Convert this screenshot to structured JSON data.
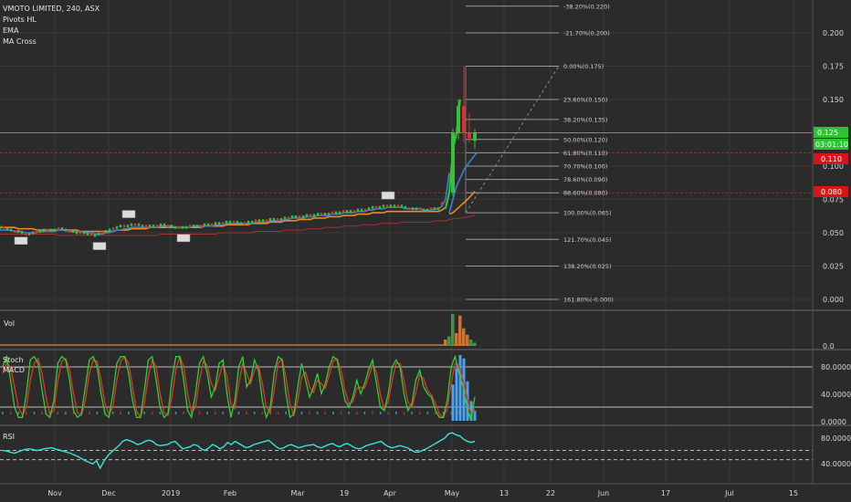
{
  "header": {
    "symbol_line": "VMOTO LIMITED, 240, ASX",
    "indicators": [
      "Pivots HL",
      "EMA",
      "MA Cross"
    ]
  },
  "colors": {
    "bg": "#2b2b2b",
    "grid": "#3a3a3a",
    "green": "#36c236",
    "red": "#e03030",
    "ema_blue": "#3d7fd6",
    "ma_orange": "#f08a24",
    "ma_darkred": "#a83232",
    "stoch_green": "#2fd12f",
    "stoch_red": "#e8332e",
    "macd_blue": "#4aa3f0",
    "rsi": "#33e6d8",
    "vol_orange": "#c8743a",
    "vol_green": "#4c8c4c",
    "fib_line": "#9a9a9a",
    "price_label_bg": "#31c231",
    "line_label_bg": "#d8161a"
  },
  "chart_data": [
    {
      "type": "line",
      "panel": "price",
      "x_ticks": [
        "Nov",
        "Dec",
        "2019",
        "Feb",
        "Mar",
        "19",
        "Apr",
        "May",
        "13",
        "22",
        "Jun",
        "17",
        "Jul",
        "15"
      ],
      "y_ticks": [
        "0.200",
        "0.175",
        "0.150",
        "0.125",
        "0.100",
        "0.075",
        "0.050",
        "0.025",
        "0.000"
      ],
      "ylim": [
        -0.005,
        0.215
      ],
      "price_path_x": [
        0,
        4,
        8,
        12,
        16,
        20,
        24,
        28,
        32,
        36,
        40,
        44,
        48,
        52,
        56,
        60,
        64,
        68,
        72,
        76,
        80,
        84,
        88,
        92,
        96,
        100,
        104,
        108,
        112,
        116,
        120,
        124,
        128,
        132,
        136,
        140,
        144,
        148,
        152,
        156,
        160,
        164,
        168,
        172,
        176,
        180,
        184,
        188,
        192,
        196,
        200,
        204,
        208,
        212,
        216,
        220,
        224,
        228,
        232,
        236,
        240,
        244,
        248,
        252,
        256,
        260,
        264,
        268,
        272,
        276,
        280,
        284,
        288,
        292,
        296,
        300,
        304,
        308,
        312,
        316,
        320,
        324,
        328,
        332,
        336,
        340,
        344,
        348,
        352,
        356,
        360,
        364,
        368,
        372,
        376,
        380,
        384,
        388,
        392,
        396,
        400,
        404,
        408,
        412,
        416,
        420,
        424,
        428,
        432,
        436,
        440,
        444,
        448,
        452,
        456,
        460,
        464,
        468,
        472,
        476,
        480,
        484,
        488,
        492
      ],
      "price_path_y": [
        0.054,
        0.054,
        0.053,
        0.052,
        0.051,
        0.051,
        0.05,
        0.049,
        0.049,
        0.05,
        0.051,
        0.051,
        0.052,
        0.052,
        0.052,
        0.052,
        0.053,
        0.053,
        0.052,
        0.051,
        0.051,
        0.05,
        0.05,
        0.05,
        0.049,
        0.049,
        0.048,
        0.049,
        0.05,
        0.051,
        0.052,
        0.053,
        0.054,
        0.055,
        0.055,
        0.055,
        0.056,
        0.056,
        0.056,
        0.055,
        0.055,
        0.055,
        0.055,
        0.055,
        0.056,
        0.056,
        0.055,
        0.055,
        0.054,
        0.054,
        0.054,
        0.054,
        0.055,
        0.055,
        0.055,
        0.055,
        0.056,
        0.056,
        0.056,
        0.057,
        0.057,
        0.057,
        0.058,
        0.058,
        0.058,
        0.058,
        0.057,
        0.057,
        0.058,
        0.058,
        0.059,
        0.059,
        0.059,
        0.059,
        0.06,
        0.06,
        0.06,
        0.06,
        0.061,
        0.061,
        0.062,
        0.062,
        0.062,
        0.062,
        0.063,
        0.063,
        0.063,
        0.064,
        0.064,
        0.064,
        0.064,
        0.065,
        0.065,
        0.065,
        0.066,
        0.066,
        0.066,
        0.066,
        0.067,
        0.067,
        0.067,
        0.068,
        0.069,
        0.069,
        0.069,
        0.07,
        0.07,
        0.07,
        0.07,
        0.07,
        0.07,
        0.069,
        0.068,
        0.068,
        0.068,
        0.068,
        0.067,
        0.067,
        0.068,
        0.068,
        0.068,
        0.072,
        0.08,
        0.11
      ],
      "ema_path_y": [
        0.052,
        0.052,
        0.052,
        0.052,
        0.051,
        0.051,
        0.051,
        0.05,
        0.05,
        0.05,
        0.05,
        0.051,
        0.051,
        0.051,
        0.051,
        0.051,
        0.052,
        0.052,
        0.052,
        0.051,
        0.051,
        0.051,
        0.051,
        0.05,
        0.05,
        0.05,
        0.049,
        0.049,
        0.049,
        0.05,
        0.05,
        0.051,
        0.052,
        0.052,
        0.053,
        0.053,
        0.054,
        0.054,
        0.054,
        0.054,
        0.054,
        0.054,
        0.054,
        0.054,
        0.055,
        0.055,
        0.055,
        0.055,
        0.054,
        0.054,
        0.054,
        0.054,
        0.054,
        0.055,
        0.055,
        0.055,
        0.055,
        0.055,
        0.055,
        0.056,
        0.056,
        0.056,
        0.057,
        0.057,
        0.057,
        0.057,
        0.057,
        0.057,
        0.057,
        0.057,
        0.058,
        0.058,
        0.058,
        0.058,
        0.059,
        0.059,
        0.059,
        0.059,
        0.06,
        0.06,
        0.061,
        0.061,
        0.061,
        0.061,
        0.062,
        0.062,
        0.062,
        0.063,
        0.063,
        0.063,
        0.063,
        0.064,
        0.064,
        0.064,
        0.065,
        0.065,
        0.065,
        0.065,
        0.066,
        0.066,
        0.066,
        0.067,
        0.067,
        0.068,
        0.068,
        0.068,
        0.069,
        0.069,
        0.069,
        0.069,
        0.069,
        0.068,
        0.068,
        0.068,
        0.068,
        0.068,
        0.067,
        0.067,
        0.067,
        0.068,
        0.068,
        0.07,
        0.075,
        0.095
      ],
      "ma_fast_y": [
        0.054,
        0.054,
        0.054,
        0.054,
        0.054,
        0.053,
        0.053,
        0.053,
        0.053,
        0.053,
        0.052,
        0.052,
        0.052,
        0.052,
        0.052,
        0.052,
        0.052,
        0.052,
        0.052,
        0.052,
        0.052,
        0.052,
        0.051,
        0.051,
        0.051,
        0.051,
        0.051,
        0.051,
        0.051,
        0.051,
        0.051,
        0.051,
        0.052,
        0.052,
        0.052,
        0.052,
        0.053,
        0.053,
        0.053,
        0.053,
        0.053,
        0.054,
        0.054,
        0.054,
        0.054,
        0.054,
        0.054,
        0.054,
        0.054,
        0.054,
        0.054,
        0.054,
        0.054,
        0.054,
        0.054,
        0.054,
        0.055,
        0.055,
        0.055,
        0.055,
        0.055,
        0.055,
        0.056,
        0.056,
        0.056,
        0.056,
        0.056,
        0.056,
        0.056,
        0.057,
        0.057,
        0.057,
        0.057,
        0.057,
        0.058,
        0.058,
        0.058,
        0.058,
        0.059,
        0.059,
        0.059,
        0.059,
        0.06,
        0.06,
        0.06,
        0.06,
        0.061,
        0.061,
        0.061,
        0.061,
        0.062,
        0.062,
        0.062,
        0.062,
        0.063,
        0.063,
        0.063,
        0.063,
        0.064,
        0.064,
        0.064,
        0.064,
        0.065,
        0.065,
        0.065,
        0.065,
        0.066,
        0.066,
        0.066,
        0.066,
        0.066,
        0.066,
        0.066,
        0.066,
        0.066,
        0.066,
        0.066,
        0.066,
        0.066,
        0.066,
        0.066,
        0.067,
        0.069,
        0.08
      ],
      "ma_slow_y": [
        0.053,
        0.053,
        0.053,
        0.053,
        0.053,
        0.053,
        0.053,
        0.053,
        0.053,
        0.053,
        0.053,
        0.053,
        0.053,
        0.053,
        0.053,
        0.053,
        0.052,
        0.052,
        0.052,
        0.052,
        0.052,
        0.052,
        0.052,
        0.052,
        0.052,
        0.052,
        0.052,
        0.052,
        0.052,
        0.052,
        0.052,
        0.052,
        0.052,
        0.052,
        0.052,
        0.052,
        0.052,
        0.052,
        0.052,
        0.052,
        0.052,
        0.052,
        0.052,
        0.052,
        0.053,
        0.053,
        0.053,
        0.053,
        0.053,
        0.053,
        0.053,
        0.053,
        0.053,
        0.053,
        0.053,
        0.053,
        0.053,
        0.053,
        0.053,
        0.053,
        0.054,
        0.054,
        0.054,
        0.054,
        0.054,
        0.054,
        0.054,
        0.054,
        0.054,
        0.054,
        0.055,
        0.055,
        0.055,
        0.055,
        0.055,
        0.055,
        0.055,
        0.055,
        0.056,
        0.056,
        0.056,
        0.056,
        0.056,
        0.056,
        0.057,
        0.057,
        0.057,
        0.057,
        0.057,
        0.058,
        0.058,
        0.058,
        0.058,
        0.058,
        0.059,
        0.059,
        0.059,
        0.059,
        0.059,
        0.06,
        0.06,
        0.06,
        0.06,
        0.06,
        0.061,
        0.061,
        0.061,
        0.061,
        0.061,
        0.061,
        0.062,
        0.062,
        0.062,
        0.062,
        0.062,
        0.062,
        0.062,
        0.062,
        0.062,
        0.063,
        0.063,
        0.063,
        0.063,
        0.064
      ],
      "spike_candles": [
        {
          "o": 0.08,
          "h": 0.128,
          "l": 0.078,
          "c": 0.125,
          "up": true
        },
        {
          "o": 0.125,
          "h": 0.15,
          "l": 0.12,
          "c": 0.145,
          "up": true
        },
        {
          "o": 0.145,
          "h": 0.175,
          "l": 0.118,
          "c": 0.125,
          "up": false
        },
        {
          "o": 0.125,
          "h": 0.14,
          "l": 0.118,
          "c": 0.121,
          "up": false
        },
        {
          "o": 0.119,
          "h": 0.128,
          "l": 0.113,
          "c": 0.125,
          "up": true
        }
      ],
      "fib_levels": [
        {
          "label": "-38.20%(0.220)",
          "value": 0.22
        },
        {
          "label": "-21.70%(0.200)",
          "value": 0.2
        },
        {
          "label": "0.00%(0.175)",
          "value": 0.175
        },
        {
          "label": "23.60%(0.150)",
          "value": 0.15
        },
        {
          "label": "38.20%(0.135)",
          "value": 0.135
        },
        {
          "label": "50.00%(0.120)",
          "value": 0.12
        },
        {
          "label": "61.80%(0.110)",
          "value": 0.11
        },
        {
          "label": "70.70%(0.100)",
          "value": 0.1
        },
        {
          "label": "78.60%(0.090)",
          "value": 0.09
        },
        {
          "label": "88.60%(0.080)",
          "value": 0.08
        },
        {
          "label": "100.00%(0.065)",
          "value": 0.065
        },
        {
          "label": "121.70%(0.045)",
          "value": 0.045
        },
        {
          "label": "138.20%(0.025)",
          "value": 0.025
        },
        {
          "label": "161.80%(-0.000)",
          "value": 0.0
        }
      ],
      "horizontal_lines": [
        {
          "value": 0.125,
          "style": "solid",
          "color": "#31c231"
        },
        {
          "value": 0.11,
          "style": "dashed",
          "color": "#d8161a"
        },
        {
          "value": 0.08,
          "style": "dashed",
          "color": "#d8161a"
        }
      ],
      "price_labels": {
        "current": "0.125",
        "countdown": "03:01:10",
        "line1": "0.110",
        "line2": "0.080"
      },
      "pivot_markers": [
        {
          "x": 22,
          "v": 0.044,
          "kind": "low"
        },
        {
          "x": 108,
          "v": 0.04,
          "kind": "low"
        },
        {
          "x": 140,
          "v": 0.064,
          "kind": "high"
        },
        {
          "x": 200,
          "v": 0.046,
          "kind": "low"
        },
        {
          "x": 424,
          "v": 0.078,
          "kind": "high"
        }
      ]
    },
    {
      "type": "bar",
      "panel": "volume",
      "title": "Vol",
      "y_ticks": [
        "0.0"
      ],
      "ylim": [
        0,
        1
      ],
      "bars": [
        {
          "x": 488,
          "v": 0.2,
          "up": false
        },
        {
          "x": 492,
          "v": 0.3,
          "up": true
        },
        {
          "x": 496,
          "v": 1.0,
          "up": true
        },
        {
          "x": 500,
          "v": 0.4,
          "up": false
        },
        {
          "x": 504,
          "v": 0.95,
          "up": false
        },
        {
          "x": 508,
          "v": 0.55,
          "up": false
        },
        {
          "x": 512,
          "v": 0.35,
          "up": false
        },
        {
          "x": 516,
          "v": 0.2,
          "up": true
        },
        {
          "x": 520,
          "v": 0.1,
          "up": true
        }
      ]
    },
    {
      "type": "line",
      "panel": "stoch_macd",
      "title": "Stoch",
      "subtitle": "MACD",
      "y_ticks": [
        "80.0000",
        "40.0000",
        "0.0000"
      ],
      "ylim": [
        -5,
        105
      ],
      "stoch_k": [
        80,
        95,
        60,
        20,
        5,
        5,
        40,
        90,
        95,
        85,
        45,
        10,
        5,
        30,
        85,
        95,
        90,
        60,
        15,
        5,
        10,
        50,
        90,
        95,
        80,
        40,
        10,
        5,
        40,
        85,
        95,
        95,
        70,
        30,
        5,
        5,
        45,
        90,
        95,
        60,
        20,
        5,
        10,
        60,
        95,
        95,
        60,
        15,
        5,
        40,
        85,
        95,
        70,
        35,
        50,
        85,
        90,
        40,
        5,
        30,
        80,
        95,
        50,
        60,
        90,
        75,
        30,
        5,
        20,
        70,
        95,
        90,
        40,
        5,
        10,
        50,
        85,
        60,
        35,
        50,
        70,
        40,
        55,
        80,
        95,
        90,
        60,
        30,
        20,
        35,
        60,
        40,
        55,
        75,
        90,
        55,
        20,
        15,
        40,
        80,
        90,
        80,
        40,
        15,
        25,
        60,
        75,
        50,
        40,
        35,
        15,
        5,
        5,
        30,
        80,
        95,
        70,
        50,
        20,
        0,
        35
      ],
      "stoch_d": [
        70,
        85,
        80,
        50,
        20,
        8,
        20,
        60,
        85,
        92,
        70,
        35,
        10,
        15,
        60,
        88,
        92,
        75,
        40,
        12,
        8,
        30,
        70,
        90,
        88,
        60,
        25,
        10,
        20,
        60,
        88,
        95,
        85,
        50,
        15,
        5,
        25,
        65,
        90,
        80,
        40,
        12,
        8,
        35,
        75,
        95,
        80,
        40,
        12,
        20,
        60,
        88,
        82,
        55,
        45,
        65,
        85,
        65,
        25,
        18,
        55,
        85,
        70,
        55,
        75,
        82,
        55,
        20,
        12,
        45,
        85,
        92,
        65,
        25,
        8,
        30,
        65,
        72,
        50,
        42,
        60,
        55,
        48,
        68,
        88,
        92,
        75,
        45,
        25,
        28,
        48,
        50,
        48,
        65,
        82,
        72,
        38,
        18,
        28,
        60,
        85,
        85,
        60,
        28,
        20,
        42,
        68,
        62,
        45,
        38,
        25,
        10,
        5,
        18,
        55,
        85,
        82,
        60,
        35,
        10,
        18
      ],
      "macd_hist_x": [
        496,
        500,
        504,
        508,
        512,
        516,
        520
      ],
      "macd_hist_v": [
        55,
        80,
        100,
        95,
        60,
        30,
        15
      ]
    },
    {
      "type": "line",
      "panel": "rsi",
      "title": "RSI",
      "y_ticks": [
        "80.0000",
        "40.0000"
      ],
      "ylim": [
        5,
        95
      ],
      "rsi": [
        55,
        54,
        52,
        50,
        52,
        55,
        57,
        58,
        57,
        55,
        56,
        58,
        59,
        60,
        58,
        56,
        54,
        52,
        50,
        47,
        44,
        40,
        36,
        33,
        30,
        36,
        22,
        35,
        45,
        52,
        58,
        64,
        72,
        75,
        73,
        70,
        66,
        68,
        72,
        74,
        72,
        66,
        64,
        65,
        66,
        70,
        72,
        65,
        58,
        60,
        62,
        66,
        64,
        58,
        55,
        60,
        66,
        63,
        58,
        62,
        70,
        66,
        72,
        68,
        64,
        60,
        62,
        66,
        68,
        70,
        72,
        74,
        68,
        62,
        58,
        60,
        64,
        66,
        63,
        60,
        62,
        64,
        65,
        66,
        62,
        60,
        63,
        66,
        68,
        64,
        62,
        66,
        68,
        64,
        60,
        58,
        60,
        64,
        66,
        68,
        70,
        72,
        66,
        62,
        60,
        62,
        64,
        62,
        60,
        56,
        52,
        52,
        55,
        58,
        62,
        66,
        70,
        74,
        78,
        86,
        88,
        84,
        82,
        76,
        72,
        70,
        72
      ],
      "rsi_x_start": 0,
      "rsi_x_step": 4,
      "bands": [
        55,
        38
      ]
    }
  ]
}
